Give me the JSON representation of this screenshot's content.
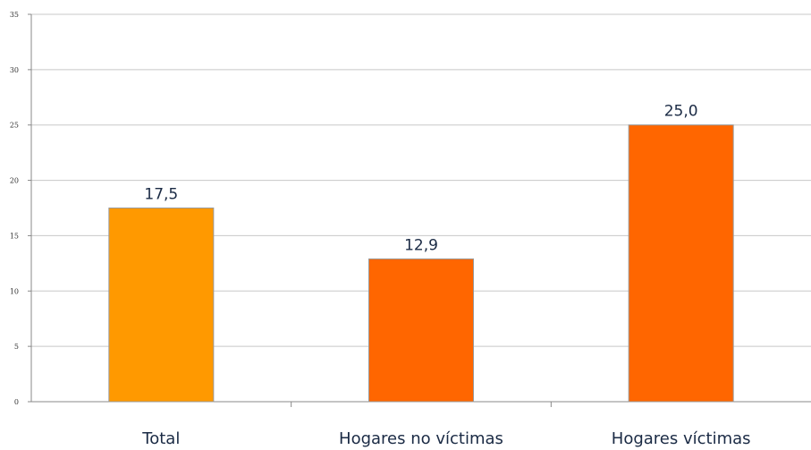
{
  "chart_data": {
    "type": "bar",
    "categories": [
      "Total",
      "Hogares no víctimas",
      "Hogares víctimas"
    ],
    "values": [
      17.5,
      12.9,
      25.0
    ],
    "data_labels": [
      "17,5",
      "12,9",
      "25,0"
    ],
    "ylim": [
      0,
      35
    ],
    "yticks": [
      0,
      5,
      10,
      15,
      20,
      25,
      30,
      35
    ],
    "grid": true,
    "legend": "none",
    "colors": [
      "#ff9900",
      "#ff6600",
      "#ff6600"
    ],
    "bar_border": "#999999"
  }
}
